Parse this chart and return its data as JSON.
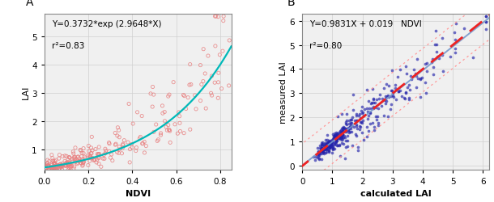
{
  "panel_A": {
    "label": "A",
    "equation": "Y=0.3732*exp (2.9648*X)",
    "r2": "r²=0.83",
    "xlabel": "NDVI",
    "ylabel": "LAI",
    "xlim": [
      0.0,
      0.85
    ],
    "ylim": [
      0.3,
      5.8
    ],
    "xticks": [
      0.0,
      0.2,
      0.4,
      0.6,
      0.8
    ],
    "yticks": [
      1,
      2,
      3,
      4,
      5
    ],
    "scatter_facecolor": "none",
    "scatter_edgecolor": "#e88080",
    "curve_color": "#00b8b8",
    "a": 0.3732,
    "b": 2.9648,
    "scatter_seed": 42,
    "n_points": 280
  },
  "panel_B": {
    "label": "B",
    "equation": "Y=0.9831X + 0.019   NDVI",
    "r2": "r²=0.80",
    "xlabel": "calculated LAI",
    "ylabel": "measured LAI",
    "xlim": [
      0.0,
      6.2
    ],
    "ylim": [
      -0.15,
      6.3
    ],
    "xticks": [
      0,
      1,
      2,
      3,
      4,
      5,
      6
    ],
    "yticks": [
      0,
      1,
      2,
      3,
      4,
      5,
      6
    ],
    "scatter_color": "#2222aa",
    "fit_color": "#7799cc",
    "dash_color": "#ee2222",
    "conf_color": "#ff9999",
    "slope": 0.9831,
    "intercept": 0.019,
    "scatter_seed": 13,
    "n_points": 400
  },
  "bg_color": "#f0f0f0",
  "grid_color": "#d0d0d0"
}
